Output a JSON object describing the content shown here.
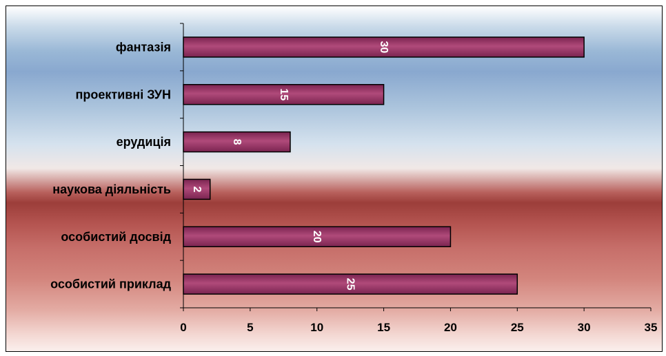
{
  "chart_data": {
    "type": "bar",
    "orientation": "horizontal",
    "categories": [
      "фантазія",
      "проективні ЗУН",
      "ерудиція",
      "наукова діяльність",
      "особистий досвід",
      "особистий приклад"
    ],
    "values": [
      30,
      15,
      8,
      2,
      20,
      25
    ],
    "data_labels": [
      "30",
      "15",
      "8",
      "2",
      "20",
      "25"
    ],
    "xlim": [
      0,
      35
    ],
    "x_ticks": [
      "0",
      "5",
      "10",
      "15",
      "20",
      "25",
      "30",
      "35"
    ],
    "title": "",
    "xlabel": "",
    "ylabel": "",
    "grid": false,
    "legend": "none",
    "colors": {
      "bar_fill_mid": "#b04a7a",
      "bar_fill_edge": "#7a2450",
      "bar_stroke": "#000000",
      "data_label": "#ffffff"
    }
  }
}
